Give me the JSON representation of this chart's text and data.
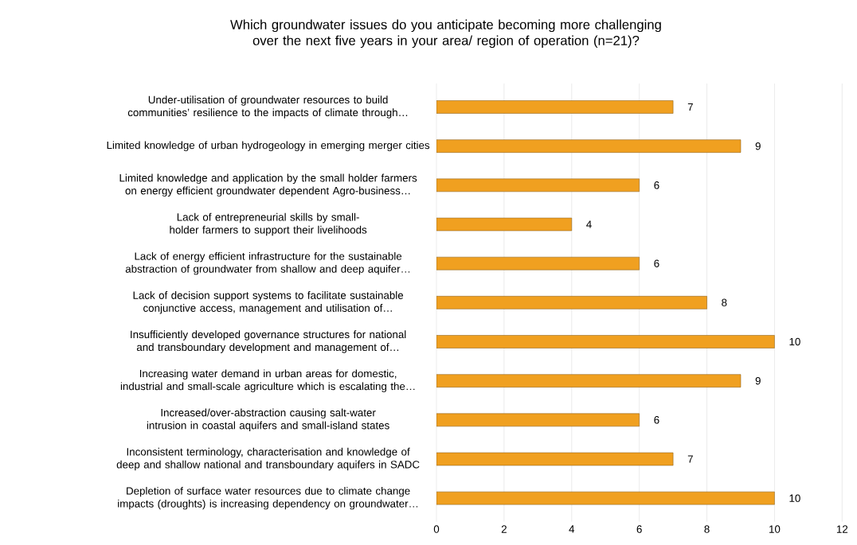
{
  "chart_data": {
    "type": "bar",
    "orientation": "horizontal",
    "title": "Which groundwater issues do you anticipate becoming more challenging over the next five years in your area/ region of operation (n=21)?",
    "categories": [
      "Under-utilisation of groundwater resources to build communities’ resilience to the impacts of climate through…",
      "Limited knowledge of urban hydrogeology in emerging merger cities",
      "Limited knowledge and application by the small holder farmers on energy efficient groundwater dependent Agro-business…",
      "Lack of entrepreneurial skills by small-holder farmers to support their livelihoods",
      "Lack of energy efficient infrastructure for the sustainable abstraction of groundwater from shallow and deep aquifer…",
      "Lack of decision support systems to facilitate sustainable conjunctive access, management and utilisation of…",
      "Insufficiently developed governance structures for national and transboundary development and management of…",
      "Increasing water demand in urban areas for domestic, industrial and small-scale agriculture which is escalating the…",
      "Increased/over-abstraction causing salt-water intrusion in coastal aquifers and small-island states",
      "Inconsistent terminology, characterisation and knowledge of deep and shallow national and transboundary aquifers in SADC",
      "Depletion of surface water resources due to climate change impacts (droughts) is increasing dependency on groundwater…"
    ],
    "values": [
      7,
      9,
      6,
      4,
      6,
      8,
      10,
      9,
      6,
      7,
      10
    ],
    "color": "#f0a020",
    "xlim": [
      0,
      12
    ],
    "xticks": [
      0,
      2,
      4,
      6,
      8,
      10,
      12
    ],
    "grid": "x",
    "data_labels": true
  }
}
